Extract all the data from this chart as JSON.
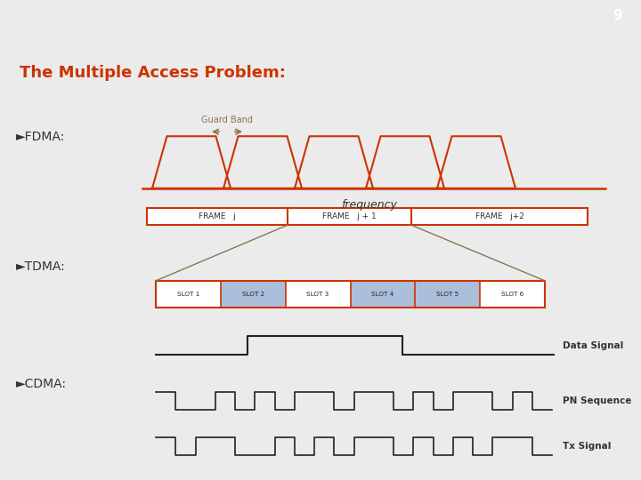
{
  "title": "The Multiple Access Problem:",
  "title_color": "#CC3300",
  "slide_number": "9",
  "bg_color": "#ebebeb",
  "header_bg": "#999999",
  "orange": "#CC3300",
  "gold": "#8B7355",
  "blue": "#7799CC",
  "black": "#222222",
  "fdma_label": "FDMA:",
  "tdma_label": "TDMA:",
  "cdma_label": "CDMA:",
  "data_signal_label": "Data Signal",
  "pn_label": "PN Sequence",
  "tx_label": "Tx Signal",
  "frequency_label": "frequency",
  "guard_band_label": "Guard Band",
  "frame_labels": [
    "FRAME   j",
    "FRAME   j + 1",
    "FRAME   j+2"
  ],
  "slot_names": [
    "SLOT 1",
    "SLOT 2",
    "SLOT 3",
    "SLOT 4",
    "SLOT 5",
    "SLOT 6"
  ],
  "highlighted_slots": [
    1,
    3,
    4
  ],
  "pn_bits": [
    1,
    0,
    0,
    1,
    0,
    1,
    0,
    1,
    1,
    0,
    1,
    1,
    0,
    1,
    0,
    1,
    1,
    0,
    1,
    0
  ],
  "tx_bits": [
    1,
    0,
    1,
    1,
    0,
    0,
    1,
    0,
    1,
    0,
    1,
    1,
    0,
    1,
    0,
    1,
    0,
    1,
    1,
    0
  ],
  "trap_centers": [
    215,
    295,
    375,
    455,
    535
  ]
}
